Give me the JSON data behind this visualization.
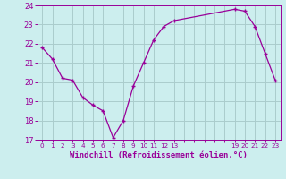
{
  "x": [
    0,
    1,
    2,
    3,
    4,
    5,
    6,
    7,
    8,
    9,
    10,
    11,
    12,
    13,
    19,
    20,
    21,
    22,
    23
  ],
  "y": [
    21.8,
    21.2,
    20.2,
    20.1,
    19.2,
    18.8,
    18.5,
    17.1,
    18.0,
    19.8,
    21.0,
    22.2,
    22.9,
    23.2,
    23.8,
    23.7,
    22.9,
    21.5,
    20.1
  ],
  "line_color": "#990099",
  "marker_color": "#990099",
  "bg_color": "#cceeee",
  "grid_color": "#aacccc",
  "xlabel": "Windchill (Refroidissement éolien,°C)",
  "xlabel_color": "#990099",
  "ylim": [
    17,
    24
  ],
  "yticks": [
    17,
    18,
    19,
    20,
    21,
    22,
    23,
    24
  ],
  "xtick_labels": [
    "0",
    "1",
    "2",
    "3",
    "4",
    "5",
    "6",
    "7",
    "8",
    "9",
    "10",
    "11",
    "12",
    "13",
    "",
    "",
    "",
    "",
    "",
    "19",
    "20",
    "21",
    "22",
    "23"
  ],
  "xtick_positions": [
    0,
    1,
    2,
    3,
    4,
    5,
    6,
    7,
    8,
    9,
    10,
    11,
    12,
    13,
    14,
    15,
    16,
    17,
    18,
    19,
    20,
    21,
    22,
    23
  ],
  "axis_color": "#990099",
  "tick_color": "#990099"
}
